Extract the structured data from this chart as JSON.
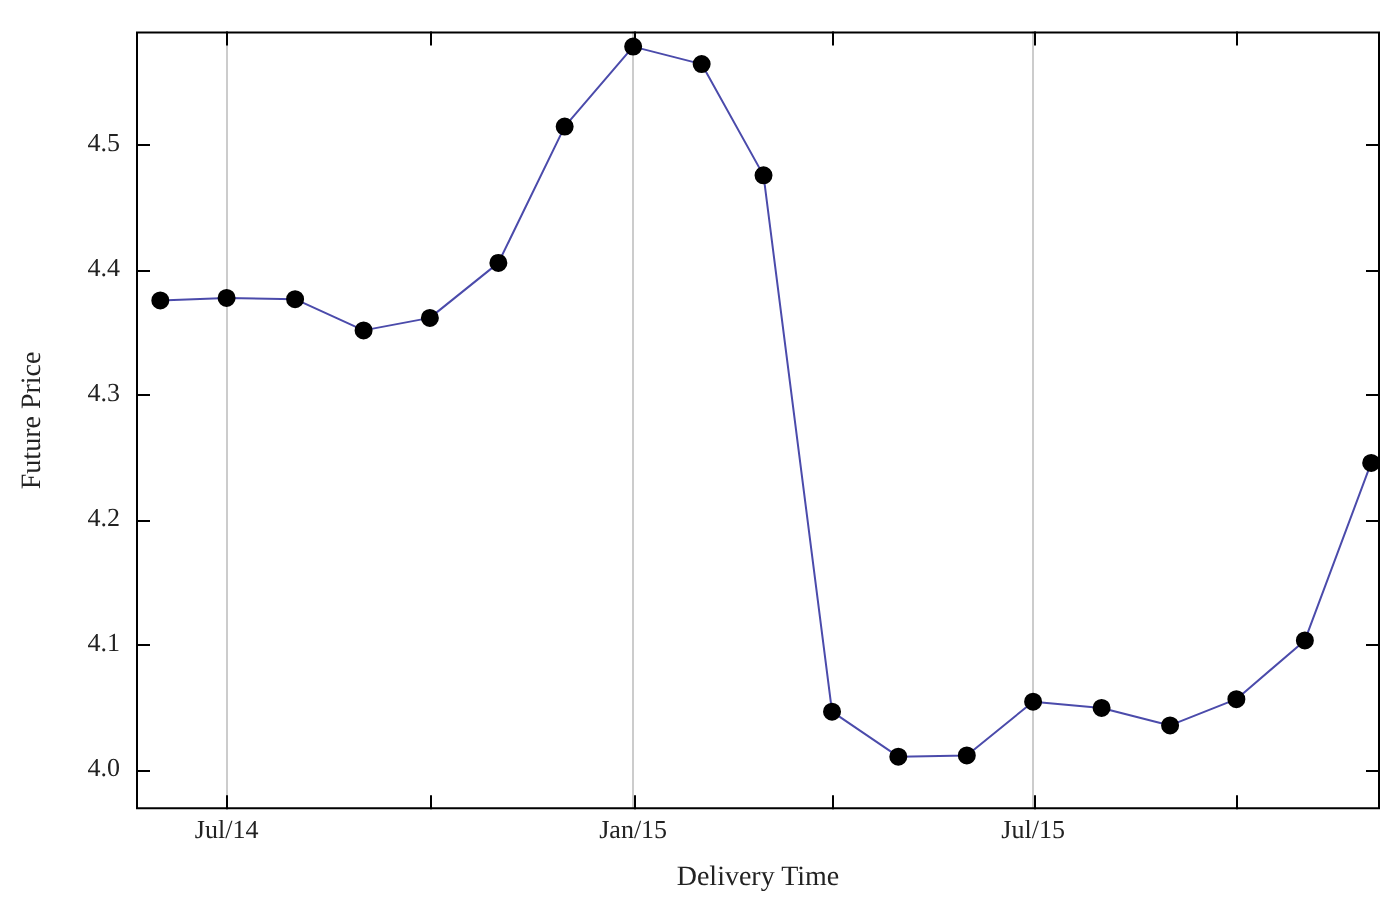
{
  "chart_data": {
    "type": "line",
    "xlabel": "Delivery Time",
    "ylabel": "Future Price",
    "x": [
      "2014-06",
      "2014-07",
      "2014-08",
      "2014-09",
      "2014-10",
      "2014-11",
      "2014-12",
      "2015-01",
      "2015-02",
      "2015-03",
      "2015-04",
      "2015-05",
      "2015-06",
      "2015-07",
      "2015-08",
      "2015-09",
      "2015-10",
      "2015-11",
      "2015-12"
    ],
    "series": [
      {
        "color": "#4b4bab",
        "values": [
          4.375,
          4.377,
          4.376,
          4.351,
          4.361,
          4.405,
          4.514,
          4.578,
          4.564,
          4.475,
          4.046,
          4.01,
          4.011,
          4.054,
          4.049,
          4.035,
          4.056,
          4.103,
          4.245
        ]
      }
    ],
    "xlim": [
      "2014-05-21",
      "2015-12-05"
    ],
    "xticks": [
      {
        "value": "2014-07",
        "label": "Jul/14"
      },
      {
        "value": "2014-10",
        "label": null
      },
      {
        "value": "2015-01",
        "label": "Jan/15"
      },
      {
        "value": "2015-04",
        "label": null
      },
      {
        "value": "2015-07",
        "label": "Jul/15"
      },
      {
        "value": "2015-10",
        "label": null
      }
    ],
    "ylim": [
      3.968,
      4.59
    ],
    "yticks": [
      {
        "value": 4.0,
        "label": "4.0"
      },
      {
        "value": 4.1,
        "label": "4.1"
      },
      {
        "value": 4.2,
        "label": "4.2"
      },
      {
        "value": 4.3,
        "label": "4.3"
      },
      {
        "value": 4.4,
        "label": "4.4"
      },
      {
        "value": 4.5,
        "label": "4.5"
      }
    ],
    "grid": "x",
    "marker": "circle",
    "line_style": "solid",
    "legend": false
  }
}
